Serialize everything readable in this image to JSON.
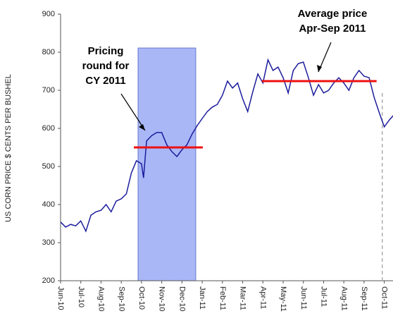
{
  "chart_data": {
    "type": "line",
    "y_label": "US CORN PRICE $ CENTS PER BUSHEL",
    "x": [
      0,
      0.25,
      0.5,
      0.75,
      1,
      1.25,
      1.5,
      1.75,
      2,
      2.25,
      2.5,
      2.75,
      3,
      3.25,
      3.5,
      3.75,
      4,
      4.1,
      4.25,
      4.5,
      4.75,
      5,
      5.25,
      5.5,
      5.75,
      6,
      6.25,
      6.5,
      6.75,
      7,
      7.25,
      7.5,
      7.75,
      8,
      8.25,
      8.5,
      8.75,
      9,
      9.25,
      9.5,
      9.75,
      10,
      10.25,
      10.5,
      10.75,
      11,
      11.25,
      11.5,
      11.75,
      12,
      12.25,
      12.5,
      12.75,
      13,
      13.25,
      13.5,
      13.75,
      14,
      14.25,
      14.5,
      14.75,
      15,
      15.25,
      15.5,
      15.75,
      16,
      16.25,
      16.5
    ],
    "series": [
      {
        "color": "#1c1c9c",
        "values": [
          354,
          341,
          348,
          344,
          357,
          330,
          372,
          381,
          385,
          400,
          381,
          409,
          415,
          428,
          483,
          515,
          507,
          470,
          567,
          581,
          589,
          589,
          557,
          539,
          526,
          544,
          557,
          585,
          607,
          626,
          644,
          656,
          663,
          687,
          724,
          706,
          719,
          678,
          644,
          696,
          743,
          719,
          780,
          752,
          761,
          733,
          693,
          752,
          770,
          774,
          733,
          687,
          715,
          693,
          700,
          719,
          733,
          719,
          700,
          733,
          752,
          737,
          733,
          681,
          641,
          604,
          622,
          637
        ]
      }
    ],
    "xlim": [
      0,
      16.5
    ],
    "xticks": [
      {
        "value": 0,
        "label": "Jun-10"
      },
      {
        "value": 1,
        "label": "Jul-10"
      },
      {
        "value": 2,
        "label": "Aug-10"
      },
      {
        "value": 3,
        "label": "Sep-10"
      },
      {
        "value": 4,
        "label": "Oct-10"
      },
      {
        "value": 5,
        "label": "Nov-10"
      },
      {
        "value": 6,
        "label": "Dec-10"
      },
      {
        "value": 7,
        "label": "Jan-11"
      },
      {
        "value": 8,
        "label": "Feb-11"
      },
      {
        "value": 9,
        "label": "Mar-11"
      },
      {
        "value": 10,
        "label": "Apr-11"
      },
      {
        "value": 11,
        "label": "May-11"
      },
      {
        "value": 12,
        "label": "Jun-11"
      },
      {
        "value": 13,
        "label": "Jul-11"
      },
      {
        "value": 14,
        "label": "Aug-11"
      },
      {
        "value": 15,
        "label": "Sep-11"
      },
      {
        "value": 16,
        "label": "Oct-11"
      }
    ],
    "ylim": [
      200,
      900
    ],
    "yticks": [
      200,
      300,
      400,
      500,
      600,
      700,
      800,
      900
    ],
    "shaded_region": {
      "x": [
        3.83,
        6.68
      ],
      "y": [
        200,
        811
      ],
      "color": "#a9b7f7"
    },
    "average_lines": [
      {
        "x": [
          3.62,
          7.03
        ],
        "value": 550,
        "color": "#ee1111"
      },
      {
        "x": [
          9.95,
          15.62
        ],
        "value": 724,
        "color": "#ee1111"
      }
    ],
    "dashed_line": {
      "x": 15.9,
      "color": "#999999"
    },
    "annotations": [
      {
        "lines": [
          "Pricing",
          "round for",
          "CY 2011"
        ]
      },
      {
        "lines": [
          "Average price",
          "Apr-Sep 2011"
        ]
      }
    ]
  }
}
